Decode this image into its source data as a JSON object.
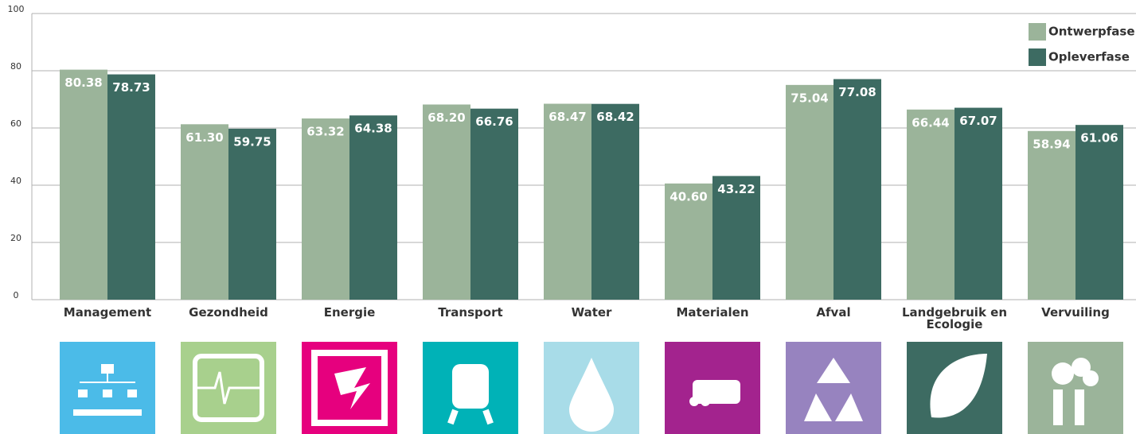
{
  "chart_data": {
    "type": "bar",
    "categories": [
      "Management",
      "Gezondheid",
      "Energie",
      "Transport",
      "Water",
      "Materialen",
      "Afval",
      "Landgebruik en Ecologie",
      "Vervuiling"
    ],
    "series": [
      {
        "name": "Ontwerpfase",
        "color": "#9bb49a",
        "values": [
          80.38,
          61.3,
          63.32,
          68.2,
          68.47,
          40.6,
          75.04,
          66.44,
          58.94
        ],
        "value_labels": [
          "80.38",
          "61.30",
          "63.32",
          "68.20",
          "68.47",
          "40.60",
          "75.04",
          "66.44",
          "58.94"
        ]
      },
      {
        "name": "Opleverfase",
        "color": "#3d6b62",
        "values": [
          78.73,
          59.75,
          64.38,
          66.76,
          68.42,
          43.22,
          77.08,
          67.07,
          61.06
        ],
        "value_labels": [
          "78.73",
          "59.75",
          "64.38",
          "66.76",
          "68.42",
          "43.22",
          "77.08",
          "67.07",
          "61.06"
        ]
      }
    ],
    "ylim": [
      0,
      100
    ],
    "yticks": [
      0,
      20,
      40,
      60,
      80,
      100
    ],
    "grid": true,
    "legend": "top-right"
  }
}
